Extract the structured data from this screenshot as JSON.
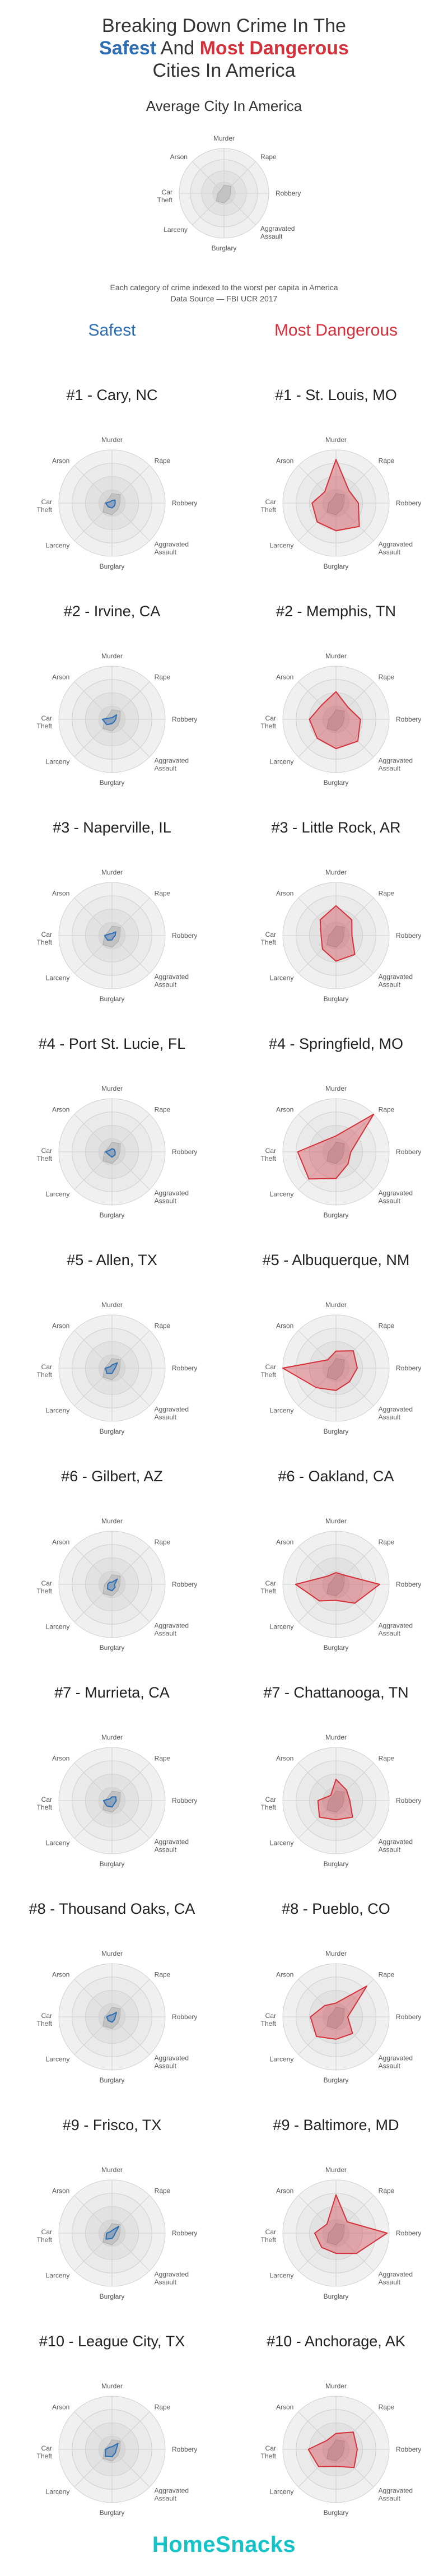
{
  "header": {
    "title_line1": "Breaking Down Crime In The",
    "title_safest": "Safest",
    "title_and": " And ",
    "title_dangerous": "Most Dangerous",
    "title_line3": "Cities In America"
  },
  "average": {
    "title": "Average City In America",
    "note_line1": "Each category of crime indexed to the worst per capita in America",
    "note_line2": "Data Source — FBI UCR 2017"
  },
  "columns": {
    "safe": "Safest",
    "danger": "Most Dangerous"
  },
  "axes": [
    "Murder",
    "Rape",
    "Robbery",
    "Aggravated Assault",
    "Burglary",
    "Larceny",
    "Car Theft",
    "Arson"
  ],
  "chart_data": {
    "type": "radar",
    "axes": [
      "Murder",
      "Rape",
      "Robbery",
      "Aggravated Assault",
      "Burglary",
      "Larceny",
      "Car Theft",
      "Arson"
    ],
    "scale_max": 1,
    "average": [
      0.18,
      0.22,
      0.15,
      0.16,
      0.22,
      0.24,
      0.14,
      0.1
    ],
    "safest": [
      {
        "name": "#1 - Cary, NC",
        "values": [
          0.05,
          0.08,
          0.06,
          0.07,
          0.09,
          0.1,
          0.12,
          0.04
        ]
      },
      {
        "name": "#2 - Irvine, CA",
        "values": [
          0.03,
          0.12,
          0.07,
          0.06,
          0.08,
          0.14,
          0.18,
          0.04
        ]
      },
      {
        "name": "#3 - Naperville, IL",
        "values": [
          0.04,
          0.1,
          0.06,
          0.04,
          0.08,
          0.12,
          0.14,
          0.05
        ]
      },
      {
        "name": "#4 - Port St. Lucie, FL",
        "values": [
          0.06,
          0.06,
          0.06,
          0.08,
          0.1,
          0.08,
          0.12,
          0.05
        ]
      },
      {
        "name": "#5 - Allen, TX",
        "values": [
          0.06,
          0.14,
          0.06,
          0.05,
          0.1,
          0.14,
          0.12,
          0.04
        ]
      },
      {
        "name": "#6 - Gilbert, AZ",
        "values": [
          0.04,
          0.14,
          0.05,
          0.08,
          0.12,
          0.12,
          0.08,
          0.06
        ]
      },
      {
        "name": "#7 - Murrieta, CA",
        "values": [
          0.07,
          0.1,
          0.08,
          0.07,
          0.12,
          0.14,
          0.16,
          0.05
        ]
      },
      {
        "name": "#8 - Thousand Oaks, CA",
        "values": [
          0.04,
          0.12,
          0.06,
          0.07,
          0.1,
          0.1,
          0.1,
          0.05
        ]
      },
      {
        "name": "#9 - Frisco, TX",
        "values": [
          0.05,
          0.18,
          0.06,
          0.06,
          0.1,
          0.16,
          0.1,
          0.04
        ]
      },
      {
        "name": "#10 - League City, TX",
        "values": [
          0.05,
          0.16,
          0.08,
          0.09,
          0.14,
          0.18,
          0.12,
          0.06
        ]
      }
    ],
    "dangerous": [
      {
        "name": "#1 - St. Louis, MO",
        "values": [
          0.82,
          0.34,
          0.42,
          0.62,
          0.52,
          0.5,
          0.45,
          0.3
        ]
      },
      {
        "name": "#2 - Memphis, TN",
        "values": [
          0.52,
          0.32,
          0.46,
          0.58,
          0.55,
          0.5,
          0.5,
          0.38
        ]
      },
      {
        "name": "#3 - Little Rock, AR",
        "values": [
          0.56,
          0.42,
          0.3,
          0.5,
          0.48,
          0.36,
          0.28,
          0.42
        ]
      },
      {
        "name": "#4 - Springfield, MO",
        "values": [
          0.3,
          1.0,
          0.28,
          0.32,
          0.5,
          0.72,
          0.72,
          0.3
        ]
      },
      {
        "name": "#5 - Albuquerque, NM",
        "values": [
          0.32,
          0.46,
          0.4,
          0.36,
          0.42,
          0.52,
          1.0,
          0.22
        ]
      },
      {
        "name": "#6 - Oakland, CA",
        "values": [
          0.22,
          0.24,
          0.82,
          0.5,
          0.3,
          0.44,
          0.76,
          0.22
        ]
      },
      {
        "name": "#7 - Chattanooga, TN",
        "values": [
          0.4,
          0.28,
          0.26,
          0.44,
          0.36,
          0.44,
          0.34,
          0.14
        ]
      },
      {
        "name": "#8 - Pueblo, CO",
        "values": [
          0.26,
          0.82,
          0.22,
          0.44,
          0.42,
          0.52,
          0.48,
          0.3
        ]
      },
      {
        "name": "#9 - Baltimore, MD",
        "values": [
          0.72,
          0.3,
          0.96,
          0.54,
          0.38,
          0.38,
          0.4,
          0.24
        ]
      },
      {
        "name": "#10 - Anchorage, AK",
        "values": [
          0.3,
          0.46,
          0.4,
          0.48,
          0.32,
          0.46,
          0.52,
          0.24
        ]
      }
    ]
  },
  "colors": {
    "safe": "#2c6db3",
    "danger": "#d6303a",
    "footer": "#14c3c7"
  },
  "footer": {
    "brand": "HomeSnacks"
  }
}
